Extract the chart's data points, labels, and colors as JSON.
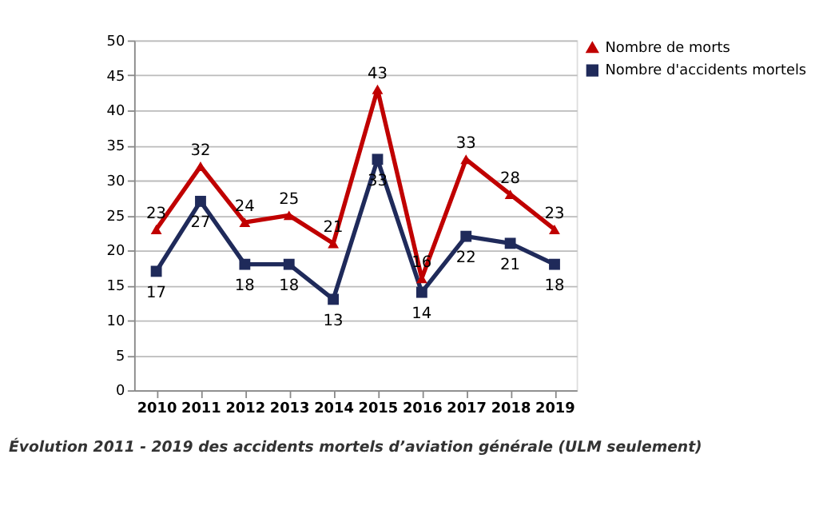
{
  "chart_data": {
    "type": "line",
    "categories": [
      "2010",
      "2011",
      "2012",
      "2013",
      "2014",
      "2015",
      "2016",
      "2017",
      "2018",
      "2019"
    ],
    "series": [
      {
        "name": "Nombre de morts",
        "color": "#c00000",
        "marker": "triangle",
        "values": [
          23,
          32,
          24,
          25,
          21,
          43,
          16,
          33,
          28,
          23
        ]
      },
      {
        "name": "Nombre d'accidents mortels",
        "color": "#1f2a5a",
        "marker": "square",
        "values": [
          17,
          27,
          18,
          18,
          13,
          33,
          14,
          22,
          21,
          18
        ]
      }
    ],
    "ylim": [
      0,
      50
    ],
    "yticks": [
      0,
      5,
      10,
      15,
      20,
      25,
      30,
      35,
      40,
      45,
      50
    ],
    "grid": "y",
    "legend": "right",
    "data_labels": true,
    "annotations": [
      "Évolution 2011 - 2019 des accidents mortels d’aviation générale (ULM seulement)"
    ]
  }
}
